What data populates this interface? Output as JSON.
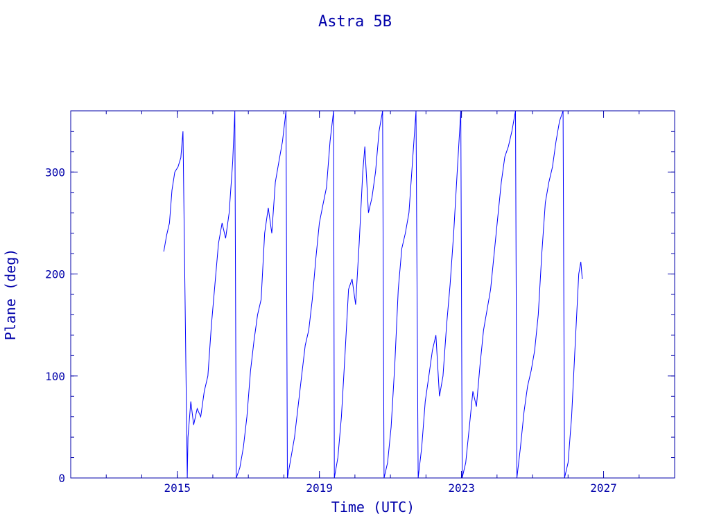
{
  "chart_data": {
    "type": "line",
    "title": "Astra 5B",
    "xlabel": "Time (UTC)",
    "ylabel": "Plane (deg)",
    "xlim": [
      2012.0,
      2029.0
    ],
    "ylim": [
      0,
      360
    ],
    "x_ticks": [
      2015,
      2019,
      2023,
      2027
    ],
    "y_ticks": [
      0,
      100,
      200,
      300
    ],
    "x_minor_step": 1,
    "y_minor_step": 20,
    "grid": false,
    "line_color": "#0000ff",
    "axis_color": "#0000aa",
    "series": [
      {
        "points": [
          [
            2014.62,
            222
          ],
          [
            2014.7,
            238
          ],
          [
            2014.78,
            250
          ],
          [
            2014.85,
            282
          ],
          [
            2014.93,
            300
          ],
          [
            2015.02,
            305
          ],
          [
            2015.1,
            314
          ],
          [
            2015.16,
            340
          ],
          [
            2015.28,
            0
          ],
          [
            2015.3,
            40
          ],
          [
            2015.38,
            75
          ],
          [
            2015.46,
            52
          ],
          [
            2015.56,
            68
          ],
          [
            2015.66,
            60
          ],
          [
            2015.76,
            85
          ],
          [
            2015.86,
            100
          ],
          [
            2015.96,
            150
          ],
          [
            2016.06,
            190
          ],
          [
            2016.16,
            230
          ],
          [
            2016.26,
            250
          ],
          [
            2016.36,
            235
          ],
          [
            2016.46,
            260
          ],
          [
            2016.56,
            310
          ],
          [
            2016.62,
            360
          ],
          [
            2016.66,
            0
          ],
          [
            2016.76,
            10
          ],
          [
            2016.86,
            30
          ],
          [
            2016.96,
            60
          ],
          [
            2017.06,
            105
          ],
          [
            2017.16,
            135
          ],
          [
            2017.26,
            160
          ],
          [
            2017.36,
            175
          ],
          [
            2017.46,
            240
          ],
          [
            2017.56,
            265
          ],
          [
            2017.66,
            240
          ],
          [
            2017.76,
            290
          ],
          [
            2017.86,
            310
          ],
          [
            2017.96,
            330
          ],
          [
            2018.06,
            360
          ],
          [
            2018.1,
            0
          ],
          [
            2018.2,
            20
          ],
          [
            2018.3,
            40
          ],
          [
            2018.4,
            70
          ],
          [
            2018.5,
            100
          ],
          [
            2018.6,
            130
          ],
          [
            2018.7,
            145
          ],
          [
            2018.8,
            175
          ],
          [
            2018.9,
            215
          ],
          [
            2019.0,
            250
          ],
          [
            2019.1,
            268
          ],
          [
            2019.2,
            285
          ],
          [
            2019.3,
            330
          ],
          [
            2019.4,
            360
          ],
          [
            2019.42,
            0
          ],
          [
            2019.52,
            20
          ],
          [
            2019.62,
            60
          ],
          [
            2019.72,
            120
          ],
          [
            2019.82,
            185
          ],
          [
            2019.92,
            195
          ],
          [
            2020.02,
            170
          ],
          [
            2020.12,
            230
          ],
          [
            2020.22,
            300
          ],
          [
            2020.28,
            325
          ],
          [
            2020.38,
            260
          ],
          [
            2020.48,
            275
          ],
          [
            2020.58,
            300
          ],
          [
            2020.68,
            340
          ],
          [
            2020.78,
            360
          ],
          [
            2020.82,
            0
          ],
          [
            2020.92,
            15
          ],
          [
            2021.02,
            50
          ],
          [
            2021.12,
            110
          ],
          [
            2021.22,
            185
          ],
          [
            2021.32,
            225
          ],
          [
            2021.42,
            240
          ],
          [
            2021.52,
            260
          ],
          [
            2021.62,
            310
          ],
          [
            2021.72,
            360
          ],
          [
            2021.78,
            0
          ],
          [
            2021.88,
            30
          ],
          [
            2021.98,
            75
          ],
          [
            2022.08,
            100
          ],
          [
            2022.18,
            125
          ],
          [
            2022.28,
            140
          ],
          [
            2022.38,
            80
          ],
          [
            2022.48,
            100
          ],
          [
            2022.58,
            150
          ],
          [
            2022.68,
            190
          ],
          [
            2022.78,
            240
          ],
          [
            2022.88,
            300
          ],
          [
            2022.98,
            360
          ],
          [
            2023.02,
            0
          ],
          [
            2023.12,
            15
          ],
          [
            2023.22,
            50
          ],
          [
            2023.32,
            85
          ],
          [
            2023.42,
            70
          ],
          [
            2023.52,
            110
          ],
          [
            2023.62,
            145
          ],
          [
            2023.72,
            165
          ],
          [
            2023.82,
            185
          ],
          [
            2023.92,
            220
          ],
          [
            2024.02,
            255
          ],
          [
            2024.12,
            290
          ],
          [
            2024.22,
            315
          ],
          [
            2024.32,
            325
          ],
          [
            2024.42,
            340
          ],
          [
            2024.52,
            360
          ],
          [
            2024.56,
            0
          ],
          [
            2024.66,
            30
          ],
          [
            2024.76,
            65
          ],
          [
            2024.86,
            90
          ],
          [
            2024.96,
            105
          ],
          [
            2025.06,
            125
          ],
          [
            2025.16,
            160
          ],
          [
            2025.26,
            220
          ],
          [
            2025.36,
            270
          ],
          [
            2025.46,
            290
          ],
          [
            2025.56,
            305
          ],
          [
            2025.66,
            330
          ],
          [
            2025.76,
            350
          ],
          [
            2025.86,
            360
          ],
          [
            2025.9,
            0
          ],
          [
            2026.0,
            15
          ],
          [
            2026.1,
            60
          ],
          [
            2026.2,
            130
          ],
          [
            2026.3,
            200
          ],
          [
            2026.36,
            212
          ],
          [
            2026.4,
            195
          ]
        ]
      }
    ]
  }
}
